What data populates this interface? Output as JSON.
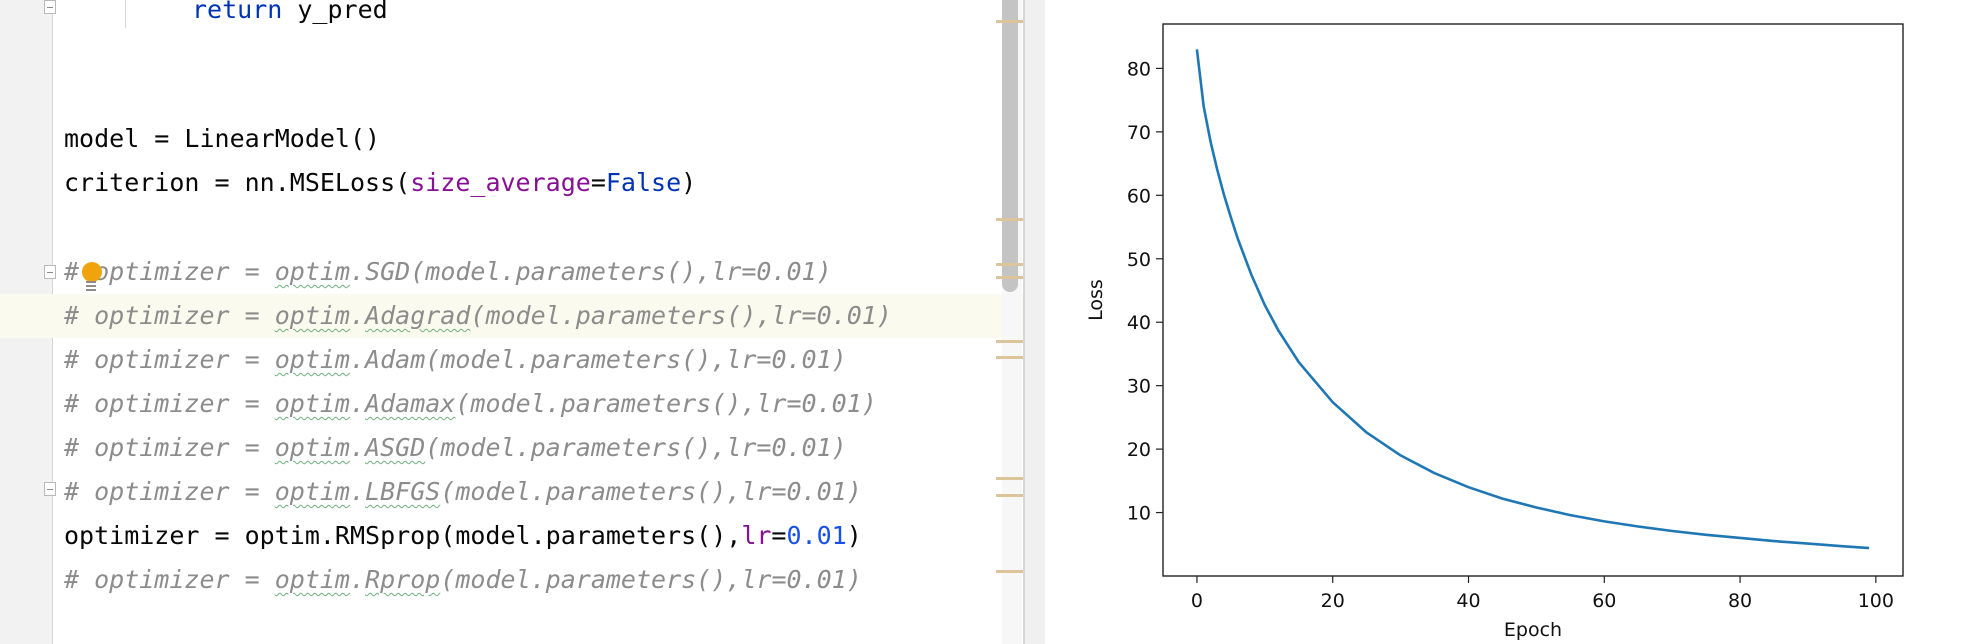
{
  "editor": {
    "lines": {
      "l0_return": "return",
      "l0_rest": " y_pred",
      "l1_lhs": "model = LinearModel()",
      "l2_pre": "criterion = nn.MSELoss(",
      "l2_param": "size_average",
      "l2_eq": "=",
      "l2_val": "False",
      "l2_post": ")",
      "c1_hash": "#",
      "c1_pre": " optimizer = ",
      "c1_mod": "optim",
      "c1_dot": ".",
      "c1_fn": "SGD",
      "c1_post": "(model.parameters(),lr=0.01)",
      "c2_pre": "# optimizer = ",
      "c2_mod": "optim",
      "c2_dot": ".",
      "c2_fn": "Adagrad",
      "c2_post": "(model.parameters(),lr=0.01)",
      "c3_pre": "# optimizer = ",
      "c3_mod": "optim",
      "c3_dot": ".",
      "c3_fn": "Adam",
      "c3_post": "(model.parameters(),lr=0.01)",
      "c4_pre": "# optimizer = ",
      "c4_mod": "optim",
      "c4_dot": ".",
      "c4_fn": "Adamax",
      "c4_post": "(model.parameters(),lr=0.01)",
      "c5_pre": "# optimizer = ",
      "c5_mod": "optim",
      "c5_dot": ".",
      "c5_fn": "ASGD",
      "c5_post": "(model.parameters(),lr=0.01)",
      "c6_pre": "# optimizer = ",
      "c6_mod": "optim",
      "c6_dot": ".",
      "c6_fn": "LBFGS",
      "c6_post": "(model.parameters(),lr=0.01)",
      "a1_pre": "optimizer = optim.RMSprop(model.parameters(),",
      "a1_param": "lr",
      "a1_eq": "=",
      "a1_num": "0.01",
      "a1_post": ")",
      "c7_pre": "# optimizer = ",
      "c7_mod": "optim",
      "c7_dot": ".",
      "c7_fn": "Rprop",
      "c7_post": "(model.parameters(),lr=0.01)"
    }
  },
  "chart_data": {
    "type": "line",
    "title": "",
    "xlabel": "Epoch",
    "ylabel": "Loss",
    "xlim": [
      -5,
      104
    ],
    "ylim": [
      0,
      87
    ],
    "x_ticks": [
      0,
      20,
      40,
      60,
      80,
      100
    ],
    "y_ticks": [
      10,
      20,
      30,
      40,
      50,
      60,
      70,
      80
    ],
    "grid": false,
    "series": [
      {
        "name": "loss",
        "color": "#1f77b4",
        "x": [
          0,
          1,
          2,
          3,
          4,
          5,
          6,
          8,
          10,
          12,
          15,
          20,
          25,
          30,
          35,
          40,
          45,
          50,
          55,
          60,
          65,
          70,
          75,
          80,
          85,
          90,
          95,
          99
        ],
        "values": [
          83.0,
          74.0,
          68.5,
          64.0,
          60.0,
          56.5,
          53.2,
          47.5,
          42.7,
          38.7,
          33.7,
          27.4,
          22.6,
          19.0,
          16.2,
          14.0,
          12.2,
          10.8,
          9.6,
          8.6,
          7.8,
          7.1,
          6.5,
          6.0,
          5.5,
          5.1,
          4.7,
          4.4
        ]
      }
    ]
  }
}
